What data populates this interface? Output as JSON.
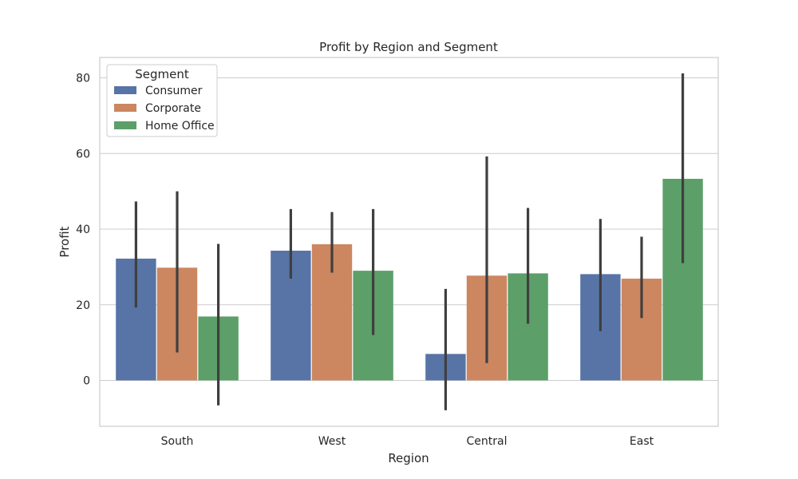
{
  "chart_data": {
    "type": "bar",
    "title": "Profit by Region and Segment",
    "xlabel": "Region",
    "ylabel": "Profit",
    "categories": [
      "South",
      "West",
      "Central",
      "East"
    ],
    "ylim": [
      -12,
      86
    ],
    "yticks": [
      0,
      20,
      40,
      60,
      80
    ],
    "grid": true,
    "legend": {
      "title": "Segment",
      "placement": "top-left"
    },
    "series": [
      {
        "name": "Consumer",
        "color": "#5874a6",
        "values": [
          32.2,
          34.3,
          7.0,
          28.1
        ],
        "error_low": [
          19.3,
          26.9,
          -7.9,
          13.0
        ],
        "error_high": [
          47.3,
          45.3,
          24.2,
          42.7
        ]
      },
      {
        "name": "Corporate",
        "color": "#cc8660",
        "values": [
          29.8,
          36.0,
          27.7,
          26.9
        ],
        "error_low": [
          7.4,
          28.5,
          4.6,
          16.5
        ],
        "error_high": [
          50.0,
          44.5,
          59.2,
          38.0
        ]
      },
      {
        "name": "Home Office",
        "color": "#5c9f69",
        "values": [
          16.9,
          29.0,
          28.3,
          53.3
        ],
        "error_low": [
          -6.6,
          12.0,
          15.0,
          31.0
        ],
        "error_high": [
          36.1,
          45.3,
          45.6,
          81.2
        ]
      }
    ]
  }
}
